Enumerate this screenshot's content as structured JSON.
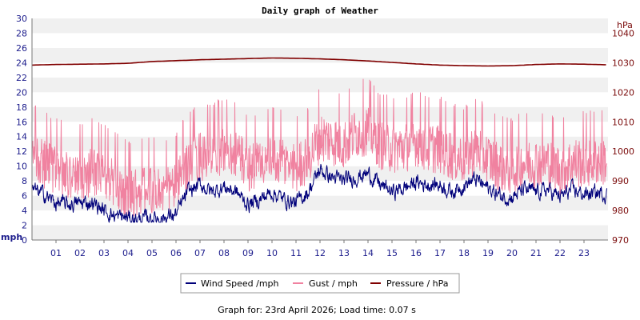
{
  "chart_data": {
    "type": "line",
    "title": "Daily graph of Weather",
    "x_tick_labels": [
      "01",
      "02",
      "03",
      "04",
      "05",
      "06",
      "07",
      "08",
      "09",
      "10",
      "11",
      "12",
      "13",
      "14",
      "15",
      "16",
      "17",
      "18",
      "19",
      "20",
      "21",
      "22",
      "23"
    ],
    "x_range_hours": [
      0,
      24
    ],
    "y_left": {
      "unit_label": "mph",
      "range": [
        0,
        30
      ],
      "tick_labels": [
        "0",
        "2",
        "4",
        "6",
        "8",
        "10",
        "12",
        "14",
        "16",
        "18",
        "20",
        "22",
        "24",
        "26",
        "28",
        "30"
      ]
    },
    "y_right": {
      "unit_label": "hPa",
      "range": [
        970,
        1045
      ],
      "tick_labels": [
        "970",
        "980",
        "990",
        "1000",
        "1010",
        "1020",
        "1030",
        "1040"
      ]
    },
    "grid": "horizontal-bands",
    "legend_position": "bottom",
    "series": [
      {
        "name": "Wind Speed /mph",
        "axis": "left",
        "color": "#00007a",
        "points": [
          [
            0.0,
            6.8
          ],
          [
            0.5,
            6.2
          ],
          [
            1.0,
            5.0
          ],
          [
            1.5,
            4.8
          ],
          [
            2.0,
            5.0
          ],
          [
            2.5,
            5.1
          ],
          [
            3.0,
            4.0
          ],
          [
            3.5,
            3.2
          ],
          [
            4.0,
            3.0
          ],
          [
            4.5,
            2.8
          ],
          [
            5.0,
            3.0
          ],
          [
            5.5,
            3.0
          ],
          [
            6.0,
            3.5
          ],
          [
            6.5,
            6.5
          ],
          [
            7.0,
            7.5
          ],
          [
            7.5,
            6.5
          ],
          [
            8.0,
            7.2
          ],
          [
            8.5,
            6.5
          ],
          [
            9.0,
            4.8
          ],
          [
            9.5,
            5.5
          ],
          [
            10.0,
            6.5
          ],
          [
            10.5,
            5.5
          ],
          [
            11.0,
            5.0
          ],
          [
            11.5,
            6.5
          ],
          [
            12.0,
            9.5
          ],
          [
            12.5,
            8.5
          ],
          [
            13.0,
            8.0
          ],
          [
            13.5,
            8.5
          ],
          [
            14.0,
            9.0
          ],
          [
            14.5,
            7.5
          ],
          [
            15.0,
            6.5
          ],
          [
            15.5,
            7.0
          ],
          [
            16.0,
            7.8
          ],
          [
            16.5,
            7.5
          ],
          [
            17.0,
            7.5
          ],
          [
            17.5,
            6.5
          ],
          [
            18.0,
            7.5
          ],
          [
            18.5,
            8.2
          ],
          [
            19.0,
            7.0
          ],
          [
            19.5,
            6.0
          ],
          [
            20.0,
            5.8
          ],
          [
            20.5,
            6.8
          ],
          [
            21.0,
            6.5
          ],
          [
            21.5,
            6.8
          ],
          [
            22.0,
            5.8
          ],
          [
            22.5,
            6.8
          ],
          [
            23.0,
            6.2
          ],
          [
            23.5,
            6.3
          ]
        ]
      },
      {
        "name": "Gust / mph",
        "axis": "left",
        "color": "#f082a0",
        "points": [
          [
            0.0,
            11.5
          ],
          [
            0.5,
            10.5
          ],
          [
            1.0,
            9.5
          ],
          [
            1.5,
            9.0
          ],
          [
            2.0,
            8.8
          ],
          [
            2.5,
            9.5
          ],
          [
            3.0,
            9.0
          ],
          [
            3.5,
            7.5
          ],
          [
            4.0,
            6.5
          ],
          [
            4.5,
            6.8
          ],
          [
            5.0,
            7.0
          ],
          [
            5.5,
            6.5
          ],
          [
            6.0,
            7.5
          ],
          [
            6.5,
            10.5
          ],
          [
            7.0,
            11.5
          ],
          [
            7.5,
            11.5
          ],
          [
            8.0,
            12.5
          ],
          [
            8.5,
            12.0
          ],
          [
            9.0,
            10.0
          ],
          [
            9.5,
            10.5
          ],
          [
            10.0,
            11.0
          ],
          [
            10.5,
            10.5
          ],
          [
            11.0,
            10.0
          ],
          [
            11.5,
            11.0
          ],
          [
            12.0,
            14.0
          ],
          [
            12.5,
            13.5
          ],
          [
            13.0,
            13.0
          ],
          [
            13.5,
            14.5
          ],
          [
            14.0,
            15.0
          ],
          [
            14.5,
            13.0
          ],
          [
            15.0,
            12.5
          ],
          [
            15.5,
            12.5
          ],
          [
            16.0,
            13.5
          ],
          [
            16.5,
            12.5
          ],
          [
            17.0,
            12.5
          ],
          [
            17.5,
            11.5
          ],
          [
            18.0,
            11.0
          ],
          [
            18.5,
            12.5
          ],
          [
            19.0,
            11.0
          ],
          [
            19.5,
            10.0
          ],
          [
            20.0,
            9.5
          ],
          [
            20.5,
            10.5
          ],
          [
            21.0,
            10.5
          ],
          [
            21.5,
            10.5
          ],
          [
            22.0,
            9.5
          ],
          [
            22.5,
            10.5
          ],
          [
            23.0,
            10.5
          ],
          [
            23.5,
            10.8
          ]
        ]
      },
      {
        "name": "Pressure / hPa",
        "axis": "right",
        "color": "#800000",
        "points": [
          [
            0,
            1029.2
          ],
          [
            1,
            1029.4
          ],
          [
            2,
            1029.5
          ],
          [
            3,
            1029.6
          ],
          [
            4,
            1029.8
          ],
          [
            5,
            1030.4
          ],
          [
            6,
            1030.7
          ],
          [
            7,
            1031.0
          ],
          [
            8,
            1031.2
          ],
          [
            9,
            1031.4
          ],
          [
            10,
            1031.6
          ],
          [
            11,
            1031.5
          ],
          [
            12,
            1031.3
          ],
          [
            13,
            1031.0
          ],
          [
            14,
            1030.6
          ],
          [
            15,
            1030.1
          ],
          [
            16,
            1029.6
          ],
          [
            17,
            1029.2
          ],
          [
            18,
            1029.0
          ],
          [
            19,
            1028.9
          ],
          [
            20,
            1029.0
          ],
          [
            21,
            1029.4
          ],
          [
            22,
            1029.6
          ],
          [
            23,
            1029.5
          ],
          [
            24,
            1029.3
          ]
        ]
      }
    ],
    "footer": "Graph for: 23rd April 2026; Load time: 0.07 s"
  }
}
